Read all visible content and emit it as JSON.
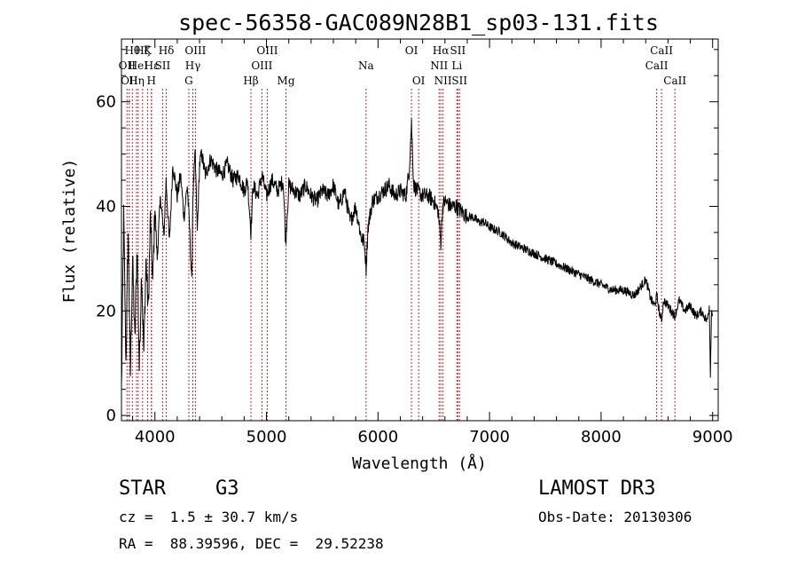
{
  "chart_data": {
    "type": "line",
    "title": "spec-56358-GAC089N28B1_sp03-131.fits",
    "xlabel": "Wavelength (Å)",
    "ylabel": "Flux (relative)",
    "xlim": [
      3700,
      9050
    ],
    "ylim": [
      -1,
      72
    ],
    "xticks": [
      4000,
      5000,
      6000,
      7000,
      8000,
      9000
    ],
    "yticks": [
      0,
      20,
      40,
      60
    ],
    "series": [
      {
        "name": "flux",
        "x": [
          3700,
          3720,
          3740,
          3760,
          3780,
          3800,
          3820,
          3840,
          3860,
          3880,
          3900,
          3920,
          3940,
          3960,
          3980,
          4000,
          4020,
          4050,
          4080,
          4100,
          4130,
          4160,
          4200,
          4230,
          4260,
          4290,
          4310,
          4330,
          4340,
          4361,
          4380,
          4400,
          4420,
          4450,
          4500,
          4550,
          4600,
          4650,
          4700,
          4750,
          4800,
          4830,
          4861,
          4880,
          4920,
          4960,
          5000,
          5050,
          5100,
          5150,
          5172,
          5200,
          5250,
          5300,
          5350,
          5400,
          5450,
          5500,
          5550,
          5600,
          5650,
          5700,
          5750,
          5800,
          5850,
          5880,
          5893,
          5910,
          5950,
          6000,
          6050,
          6100,
          6150,
          6200,
          6250,
          6280,
          6300,
          6320,
          6350,
          6400,
          6450,
          6500,
          6540,
          6563,
          6580,
          6600,
          6650,
          6700,
          6750,
          6800,
          6850,
          6900,
          6950,
          7000,
          7100,
          7200,
          7300,
          7400,
          7500,
          7600,
          7700,
          7800,
          7900,
          8000,
          8100,
          8200,
          8300,
          8400,
          8450,
          8480,
          8500,
          8520,
          8542,
          8560,
          8600,
          8662,
          8700,
          8750,
          8800,
          8850,
          8900,
          8950,
          8970,
          8980,
          8990,
          9000
        ],
        "values": [
          5,
          38,
          10,
          35,
          8,
          30,
          14,
          33,
          9,
          28,
          12,
          30,
          20,
          38,
          25,
          40,
          30,
          42,
          34,
          45,
          33,
          48,
          42,
          46,
          38,
          44,
          36,
          25,
          42,
          50,
          35,
          48,
          50,
          46,
          49,
          47,
          46,
          48,
          45,
          46,
          43,
          45,
          35,
          44,
          42,
          46,
          42,
          45,
          43,
          45,
          33,
          44,
          43,
          42,
          44,
          42,
          41,
          43,
          42,
          44,
          40,
          43,
          37,
          40,
          34,
          33,
          28,
          36,
          41,
          42,
          43,
          44,
          42,
          43,
          42,
          47,
          56,
          44,
          43,
          42,
          42,
          41,
          39,
          33,
          40,
          41,
          40,
          40,
          39,
          38,
          38,
          37,
          37,
          36,
          35,
          33,
          32,
          31,
          30,
          29,
          28,
          27,
          26,
          25,
          24,
          24,
          23,
          26,
          22,
          21,
          23,
          20,
          18,
          22,
          21,
          19,
          22,
          20,
          21,
          19,
          20,
          18,
          21,
          8,
          20,
          19
        ]
      }
    ],
    "lines": [
      {
        "w": 3750,
        "label": "OII",
        "row": 2
      },
      {
        "w": 3770,
        "label": "OII",
        "row": 3
      },
      {
        "w": 3798,
        "label": "Hθ",
        "row": 1
      },
      {
        "w": 3835,
        "label": "Hη",
        "row": 3
      },
      {
        "w": 3850,
        "label": "HeI",
        "row": 2
      },
      {
        "w": 3889,
        "label": "Hζ",
        "row": 1
      },
      {
        "w": 3934,
        "label": "K",
        "row": 1
      },
      {
        "w": 3968,
        "label": "H",
        "row": 3
      },
      {
        "w": 3970,
        "label": "Hε",
        "row": 2
      },
      {
        "w": 4069,
        "label": "SII",
        "row": 2
      },
      {
        "w": 4102,
        "label": "Hδ",
        "row": 1
      },
      {
        "w": 4304,
        "label": "G",
        "row": 3
      },
      {
        "w": 4340,
        "label": "Hγ",
        "row": 2
      },
      {
        "w": 4363,
        "label": "OIII",
        "row": 1
      },
      {
        "w": 4861,
        "label": "Hβ",
        "row": 3
      },
      {
        "w": 4959,
        "label": "OIII",
        "row": 2
      },
      {
        "w": 5007,
        "label": "OIII",
        "row": 1
      },
      {
        "w": 5175,
        "label": "Mg",
        "row": 3
      },
      {
        "w": 5893,
        "label": "Na",
        "row": 2
      },
      {
        "w": 6300,
        "label": "OI",
        "row": 1
      },
      {
        "w": 6364,
        "label": "OI",
        "row": 3
      },
      {
        "w": 6548,
        "label": "NII",
        "row": 2
      },
      {
        "w": 6563,
        "label": "Hα",
        "row": 1
      },
      {
        "w": 6583,
        "label": "NII",
        "row": 3
      },
      {
        "w": 6707,
        "label": "Li",
        "row": 2
      },
      {
        "w": 6716,
        "label": "SII",
        "row": 1
      },
      {
        "w": 6731,
        "label": "SII",
        "row": 3
      },
      {
        "w": 8498,
        "label": "CaII",
        "row": 2
      },
      {
        "w": 8542,
        "label": "CaII",
        "row": 1
      },
      {
        "w": 8662,
        "label": "CaII",
        "row": 3
      }
    ]
  },
  "info": {
    "class_label": "STAR",
    "subclass": "G3",
    "redshift": "cz =  1.5 ± 30.7 km/s",
    "coords": "RA =  88.39596, DEC =  29.52238",
    "survey": "LAMOST DR3",
    "obs_date": "Obs-Date: 20130306"
  }
}
